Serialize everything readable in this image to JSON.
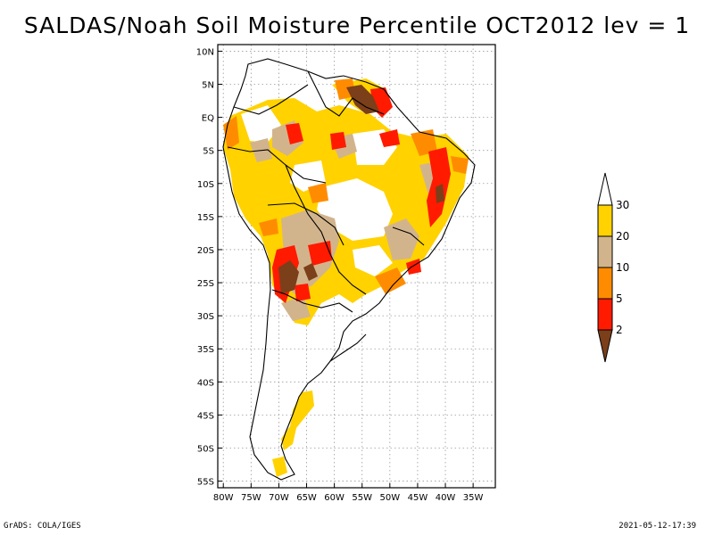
{
  "title": "SALDAS/Noah Soil Moisture Percentile OCT2012 lev = 1",
  "map": {
    "lat_ticks": [
      "10N",
      "5N",
      "EQ",
      "5S",
      "10S",
      "15S",
      "20S",
      "25S",
      "30S",
      "35S",
      "40S",
      "45S",
      "50S",
      "55S"
    ],
    "lon_ticks": [
      "80W",
      "75W",
      "70W",
      "65W",
      "60W",
      "55W",
      "50W",
      "45W",
      "40W",
      "35W"
    ],
    "lat_range": [
      -56,
      11
    ],
    "lon_range": [
      -81,
      -31
    ]
  },
  "legend": {
    "levels": [
      "2",
      "5",
      "10",
      "20",
      "30"
    ],
    "colors": {
      "below_2": "#7b3f1a",
      "2_5": "#ff1a00",
      "5_10": "#ff8c00",
      "10_20": "#d2b48c",
      "20_30": "#ffd200",
      "above_30": "#ffffff"
    }
  },
  "footer": {
    "left": "GrADS: COLA/IGES",
    "right": "2021-05-12-17:39"
  }
}
